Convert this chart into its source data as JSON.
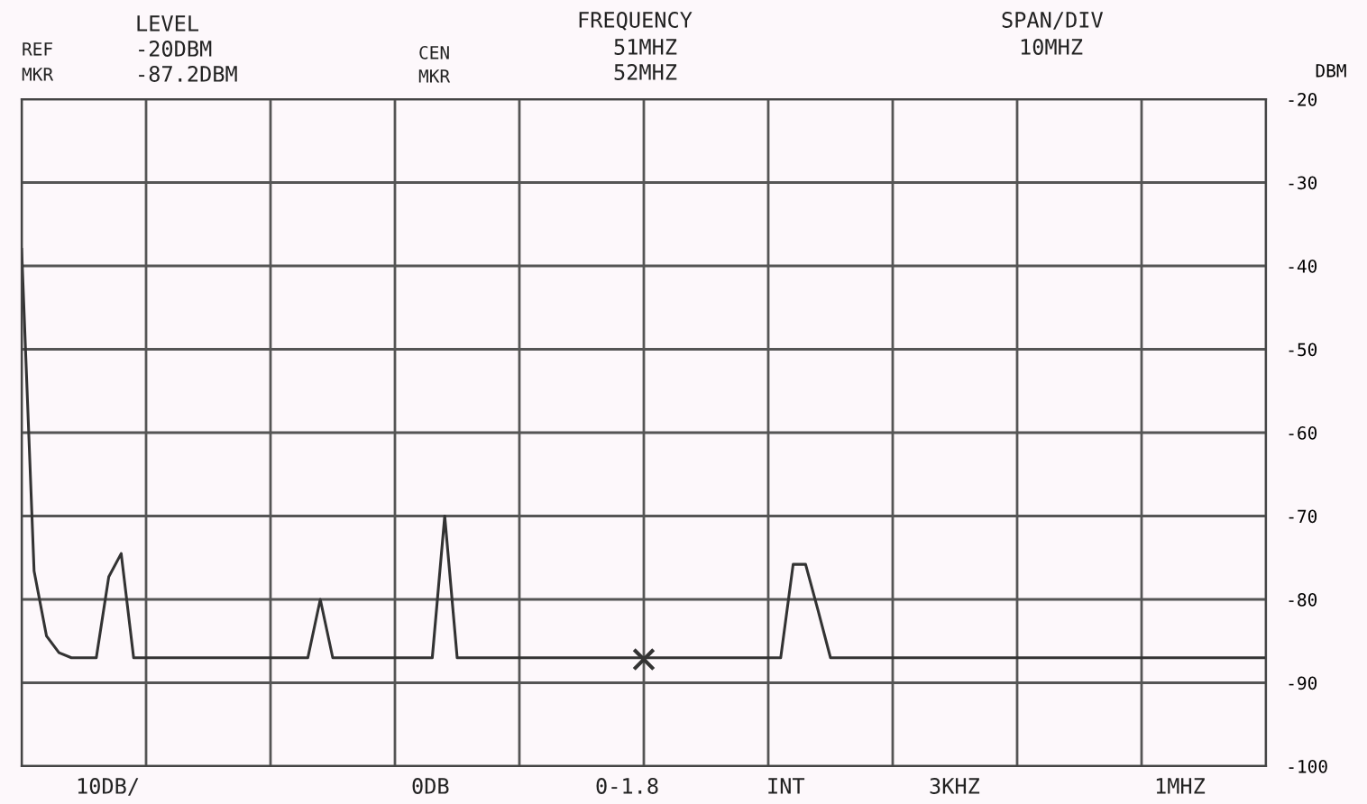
{
  "chart_data": {
    "type": "line",
    "ylabel": "DBM",
    "categories": [
      null,
      null,
      null,
      null,
      null,
      null,
      null,
      null,
      null,
      null,
      null,
      null,
      null,
      null,
      null,
      null,
      null,
      null,
      null,
      null,
      null,
      null,
      null,
      null,
      null,
      null,
      null,
      null,
      null,
      null,
      null,
      null,
      null,
      null,
      null,
      null,
      null,
      null,
      null,
      null,
      null,
      null,
      null,
      null,
      null,
      null,
      null,
      null,
      null,
      null,
      null,
      null,
      null,
      null,
      null,
      null,
      null,
      null,
      null,
      null,
      null,
      null,
      null,
      null,
      null,
      null,
      null,
      null,
      null,
      null,
      null,
      null,
      null,
      null,
      null,
      null,
      null,
      null,
      null,
      null,
      null,
      null,
      null,
      null,
      null,
      null,
      null,
      null,
      null,
      null,
      null,
      null,
      null,
      null,
      null,
      null,
      null,
      null,
      null,
      null,
      null
    ],
    "series": [
      {
        "color": "#333333",
        "values": [
          -38,
          -76.6,
          -84.4,
          -86.4,
          -87,
          -87,
          -87,
          -77.3,
          -74.5,
          -87,
          -87,
          -87,
          -87,
          -87,
          -87,
          -87,
          -87,
          -87,
          -87,
          -87,
          -87,
          -87,
          -87,
          -87,
          -80,
          -87,
          -87,
          -87,
          -87,
          -87,
          -87,
          -87,
          -87,
          -87,
          -70,
          -87,
          -87,
          -87,
          -87,
          -87,
          -87,
          -87,
          -87,
          -87,
          -87,
          -87,
          -87,
          -87,
          -87,
          -87,
          -87,
          -87,
          -87,
          -87,
          -87,
          -87,
          -87,
          -87,
          -87,
          -87,
          -87,
          -87,
          -75.8,
          -75.8,
          -81.3,
          -87,
          -87,
          -87,
          -87,
          -87,
          -87,
          -87,
          -87,
          -87,
          -87,
          -87,
          -87,
          -87,
          -87,
          -87,
          -87,
          -87,
          -87,
          -87,
          -87,
          -87,
          -87,
          -87,
          -87,
          -87,
          -87,
          -87,
          -87,
          -87,
          -87,
          -87,
          -87,
          -87,
          -87,
          -87,
          -87
        ]
      },
      {
        "type": "scatter",
        "color": "#333333",
        "marker": "cross",
        "values": [
          null,
          null,
          null,
          null,
          null,
          null,
          null,
          null,
          null,
          null,
          null,
          null,
          null,
          null,
          null,
          null,
          null,
          null,
          null,
          null,
          null,
          null,
          null,
          null,
          null,
          null,
          null,
          null,
          null,
          null,
          null,
          null,
          null,
          null,
          null,
          null,
          null,
          null,
          null,
          null,
          null,
          null,
          null,
          null,
          null,
          null,
          null,
          null,
          null,
          null,
          -87.2,
          null,
          null,
          null,
          null,
          null,
          null,
          null,
          null,
          null,
          null,
          null,
          null,
          null,
          null,
          null,
          null,
          null,
          null,
          null,
          null,
          null,
          null,
          null,
          null,
          null,
          null,
          null,
          null,
          null,
          null,
          null,
          null,
          null,
          null,
          null,
          null,
          null,
          null,
          null,
          null,
          null,
          null,
          null,
          null,
          null,
          null,
          null,
          null,
          null,
          null
        ]
      }
    ],
    "ylim": [
      -100,
      -20
    ],
    "yticks": [
      -20,
      -30,
      -40,
      -50,
      -60,
      -70,
      -80,
      -90,
      -100
    ],
    "grid": true,
    "annotations": [
      "LEVEL",
      "REF",
      "-20DBM",
      "MKR",
      "-87.2DBM",
      "CEN",
      "MKR",
      "FREQUENCY",
      "51MHZ",
      "52MHZ",
      "SPAN/DIV",
      "10MHZ",
      "10DB/",
      "0DB",
      "0-1.8",
      "INT",
      "3KHZ",
      "1MHZ"
    ]
  }
}
